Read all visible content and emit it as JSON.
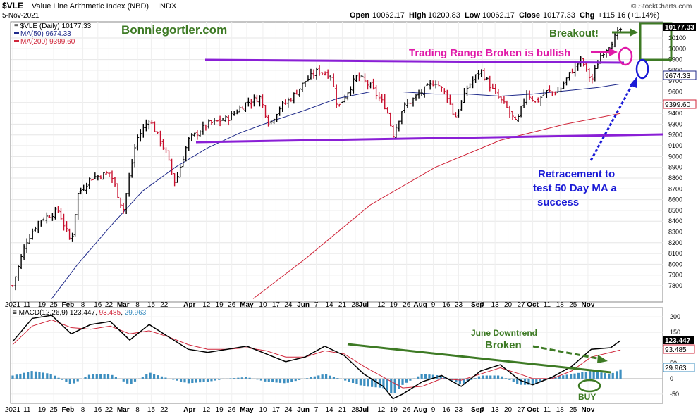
{
  "header": {
    "symbol": "$VLE",
    "name": "Value Line Arithmetic Index (NBD)",
    "exchange": "INDX",
    "date": "5-Nov-2021",
    "open_label": "Open",
    "open": "10062.17",
    "high_label": "High",
    "high": "10200.83",
    "low_label": "Low",
    "low": "10062.17",
    "close_label": "Close",
    "close": "10177.33",
    "chg_label": "Chg",
    "chg": "+115.16 (+1.14%)",
    "copyright": "© StockCharts.com"
  },
  "legend": {
    "price": "$VLE (Daily) 10177.33",
    "ma50": "MA(50) 9674.33",
    "ma200": "MA(200) 9399.60"
  },
  "watermark": "Bonniegortler.com",
  "annotations": {
    "breakout": "Breakout!",
    "range": "Trading Range Broken is bullish",
    "retrace1": "Retracement to",
    "retrace2": "test 50 Day MA  a",
    "retrace3": "success",
    "june1": "June Downtrend",
    "june2": "Broken",
    "buy": "BUY"
  },
  "macd_legend": {
    "label": "MACD(12,26,9)",
    "v1": "123.447",
    "v2": "93.485",
    "v3": "29.963"
  },
  "price_axis_tags": {
    "close": "10177.33",
    "ma50": "9674.33",
    "ma200": "9399.60"
  },
  "macd_axis_tags": {
    "macd": "123.447",
    "signal": "93.485",
    "hist": "29.963"
  },
  "colors": {
    "up": "#000000",
    "down": "#c8102e",
    "ma50": "#1f2a8a",
    "ma200": "#d0263a",
    "purple": "#8a1fd6",
    "green": "#3d7a24",
    "magenta": "#e01aa8",
    "blue": "#1a1ad6",
    "hist": "#3d8fc0"
  },
  "chart_data": [
    {
      "type": "ohlc",
      "name": "$VLE (Daily)",
      "ylim": [
        7650,
        10250
      ],
      "yticks": [
        7800,
        7900,
        8000,
        8100,
        8200,
        8300,
        8400,
        8500,
        8600,
        8700,
        8800,
        8900,
        9000,
        9100,
        9200,
        9300,
        9400,
        9500,
        9600,
        9700,
        9800,
        9900,
        10000,
        10100
      ],
      "xticks": [
        {
          "label": "2021",
          "t": 0
        },
        {
          "label": "11",
          "t": 0.022
        },
        {
          "label": "19",
          "t": 0.045
        },
        {
          "label": "25",
          "t": 0.063
        },
        {
          "label": "Feb",
          "t": 0.085
        },
        {
          "label": "8",
          "t": 0.108
        },
        {
          "label": "16",
          "t": 0.131
        },
        {
          "label": "22",
          "t": 0.148
        },
        {
          "label": "Mar",
          "t": 0.17
        },
        {
          "label": "8",
          "t": 0.192
        },
        {
          "label": "15",
          "t": 0.213
        },
        {
          "label": "22",
          "t": 0.233
        },
        {
          "label": "Apr",
          "t": 0.272
        },
        {
          "label": "12",
          "t": 0.298
        },
        {
          "label": "19",
          "t": 0.318
        },
        {
          "label": "26",
          "t": 0.337
        },
        {
          "label": "May",
          "t": 0.36
        },
        {
          "label": "10",
          "t": 0.385
        },
        {
          "label": "17",
          "t": 0.405
        },
        {
          "label": "24",
          "t": 0.424
        },
        {
          "label": "Jun",
          "t": 0.447
        },
        {
          "label": "7",
          "t": 0.467
        },
        {
          "label": "14",
          "t": 0.487
        },
        {
          "label": "21",
          "t": 0.507
        },
        {
          "label": "28",
          "t": 0.527
        },
        {
          "label": "Jul",
          "t": 0.54
        },
        {
          "label": "12",
          "t": 0.567
        },
        {
          "label": "19",
          "t": 0.586
        },
        {
          "label": "26",
          "t": 0.606
        },
        {
          "label": "Aug",
          "t": 0.627
        },
        {
          "label": "9",
          "t": 0.647
        },
        {
          "label": "16",
          "t": 0.667
        },
        {
          "label": "23",
          "t": 0.686
        },
        {
          "label": "Sep",
          "t": 0.715
        },
        {
          "label": "7",
          "t": 0.723
        },
        {
          "label": "13",
          "t": 0.742
        },
        {
          "label": "20",
          "t": 0.762
        },
        {
          "label": "27",
          "t": 0.782
        },
        {
          "label": "Oct",
          "t": 0.8
        },
        {
          "label": "11",
          "t": 0.822
        },
        {
          "label": "18",
          "t": 0.842
        },
        {
          "label": "25",
          "t": 0.862
        },
        {
          "label": "Nov",
          "t": 0.885
        }
      ],
      "anchors": [
        [
          0,
          7800
        ],
        [
          0.02,
          8200
        ],
        [
          0.04,
          8400
        ],
        [
          0.07,
          8500
        ],
        [
          0.09,
          8200
        ],
        [
          0.1,
          8650
        ],
        [
          0.12,
          8800
        ],
        [
          0.15,
          8850
        ],
        [
          0.17,
          8500
        ],
        [
          0.19,
          9150
        ],
        [
          0.21,
          9350
        ],
        [
          0.235,
          9050
        ],
        [
          0.25,
          8750
        ],
        [
          0.27,
          9150
        ],
        [
          0.3,
          9300
        ],
        [
          0.33,
          9350
        ],
        [
          0.36,
          9500
        ],
        [
          0.38,
          9550
        ],
        [
          0.395,
          9300
        ],
        [
          0.41,
          9450
        ],
        [
          0.43,
          9550
        ],
        [
          0.45,
          9700
        ],
        [
          0.47,
          9800
        ],
        [
          0.49,
          9750
        ],
        [
          0.5,
          9450
        ],
        [
          0.53,
          9750
        ],
        [
          0.55,
          9650
        ],
        [
          0.575,
          9450
        ],
        [
          0.585,
          9200
        ],
        [
          0.6,
          9450
        ],
        [
          0.62,
          9550
        ],
        [
          0.65,
          9700
        ],
        [
          0.67,
          9550
        ],
        [
          0.68,
          9350
        ],
        [
          0.7,
          9650
        ],
        [
          0.72,
          9800
        ],
        [
          0.74,
          9600
        ],
        [
          0.76,
          9450
        ],
        [
          0.775,
          9300
        ],
        [
          0.79,
          9600
        ],
        [
          0.805,
          9500
        ],
        [
          0.82,
          9600
        ],
        [
          0.84,
          9600
        ],
        [
          0.86,
          9800
        ],
        [
          0.875,
          9900
        ],
        [
          0.89,
          9700
        ],
        [
          0.905,
          9950
        ],
        [
          0.92,
          10050
        ],
        [
          0.935,
          10180
        ]
      ],
      "ma50_anchors": [
        [
          0.06,
          7680
        ],
        [
          0.1,
          8000
        ],
        [
          0.15,
          8350
        ],
        [
          0.2,
          8680
        ],
        [
          0.25,
          8900
        ],
        [
          0.3,
          9080
        ],
        [
          0.35,
          9220
        ],
        [
          0.4,
          9330
        ],
        [
          0.45,
          9430
        ],
        [
          0.5,
          9540
        ],
        [
          0.55,
          9600
        ],
        [
          0.6,
          9600
        ],
        [
          0.65,
          9580
        ],
        [
          0.7,
          9580
        ],
        [
          0.75,
          9560
        ],
        [
          0.8,
          9580
        ],
        [
          0.85,
          9610
        ],
        [
          0.9,
          9640
        ],
        [
          0.935,
          9674
        ]
      ],
      "ma200_anchors": [
        [
          0.37,
          7680
        ],
        [
          0.45,
          8050
        ],
        [
          0.55,
          8550
        ],
        [
          0.65,
          8900
        ],
        [
          0.75,
          9150
        ],
        [
          0.85,
          9300
        ],
        [
          0.935,
          9400
        ]
      ]
    },
    {
      "type": "macd",
      "name": "MACD(12,26,9)",
      "ylim": [
        -80,
        230
      ],
      "yticks": [
        200,
        150,
        100,
        50,
        0,
        -50
      ],
      "macd": [
        [
          0,
          120
        ],
        [
          0.03,
          195
        ],
        [
          0.06,
          205
        ],
        [
          0.09,
          145
        ],
        [
          0.12,
          175
        ],
        [
          0.15,
          185
        ],
        [
          0.18,
          125
        ],
        [
          0.21,
          175
        ],
        [
          0.24,
          135
        ],
        [
          0.27,
          95
        ],
        [
          0.3,
          85
        ],
        [
          0.33,
          95
        ],
        [
          0.36,
          105
        ],
        [
          0.39,
          80
        ],
        [
          0.42,
          55
        ],
        [
          0.45,
          70
        ],
        [
          0.48,
          105
        ],
        [
          0.51,
          75
        ],
        [
          0.54,
          15
        ],
        [
          0.57,
          -25
        ],
        [
          0.585,
          -65
        ],
        [
          0.6,
          -50
        ],
        [
          0.63,
          -10
        ],
        [
          0.66,
          10
        ],
        [
          0.69,
          -25
        ],
        [
          0.72,
          25
        ],
        [
          0.75,
          45
        ],
        [
          0.78,
          -5
        ],
        [
          0.8,
          -20
        ],
        [
          0.83,
          5
        ],
        [
          0.86,
          40
        ],
        [
          0.89,
          95
        ],
        [
          0.92,
          100
        ],
        [
          0.935,
          123
        ]
      ],
      "signal": [
        [
          0,
          110
        ],
        [
          0.03,
          170
        ],
        [
          0.06,
          190
        ],
        [
          0.09,
          165
        ],
        [
          0.12,
          160
        ],
        [
          0.15,
          170
        ],
        [
          0.18,
          145
        ],
        [
          0.21,
          155
        ],
        [
          0.24,
          135
        ],
        [
          0.27,
          110
        ],
        [
          0.3,
          95
        ],
        [
          0.33,
          95
        ],
        [
          0.36,
          100
        ],
        [
          0.39,
          90
        ],
        [
          0.42,
          70
        ],
        [
          0.45,
          70
        ],
        [
          0.48,
          90
        ],
        [
          0.51,
          80
        ],
        [
          0.54,
          40
        ],
        [
          0.57,
          5
        ],
        [
          0.6,
          -30
        ],
        [
          0.63,
          -25
        ],
        [
          0.66,
          0
        ],
        [
          0.69,
          -5
        ],
        [
          0.72,
          15
        ],
        [
          0.75,
          35
        ],
        [
          0.78,
          15
        ],
        [
          0.8,
          0
        ],
        [
          0.83,
          0
        ],
        [
          0.86,
          25
        ],
        [
          0.89,
          70
        ],
        [
          0.92,
          85
        ],
        [
          0.935,
          93
        ]
      ]
    }
  ]
}
